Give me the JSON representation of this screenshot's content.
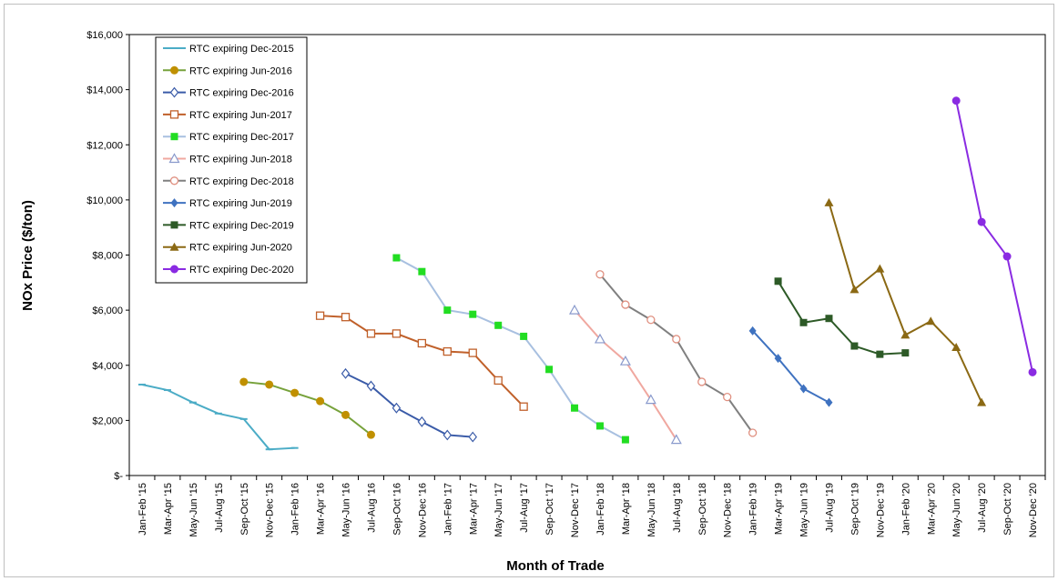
{
  "chart_data": {
    "type": "line",
    "title": "",
    "xlabel": "Month of Trade",
    "ylabel": "NOx Price ($/ton)",
    "ylim": [
      0,
      16000
    ],
    "yticks": [
      {
        "value": 0,
        "label": "$-"
      },
      {
        "value": 2000,
        "label": "$2,000"
      },
      {
        "value": 4000,
        "label": "$4,000"
      },
      {
        "value": 6000,
        "label": "$6,000"
      },
      {
        "value": 8000,
        "label": "$8,000"
      },
      {
        "value": 10000,
        "label": "$10,000"
      },
      {
        "value": 12000,
        "label": "$12,000"
      },
      {
        "value": 14000,
        "label": "$14,000"
      },
      {
        "value": 16000,
        "label": "$16,000"
      }
    ],
    "categories": [
      "Jan-Feb '15",
      "Mar-Apr '15",
      "May-Jun '15",
      "Jul-Aug '15",
      "Sep-Oct '15",
      "Nov-Dec '15",
      "Jan-Feb '16",
      "Mar-Apr '16",
      "May-Jun '16",
      "Jul-Aug '16",
      "Sep-Oct '16",
      "Nov-Dec '16",
      "Jan-Feb '17",
      "Mar-Apr '17",
      "May-Jun '17",
      "Jul-Aug '17",
      "Sep-Oct '17",
      "Nov-Dec '17",
      "Jan-Feb '18",
      "Mar-Apr '18",
      "May-Jun '18",
      "Jul-Aug '18",
      "Sep-Oct '18",
      "Nov-Dec '18",
      "Jan-Feb '19",
      "Mar-Apr '19",
      "May-Jun '19",
      "Jul-Aug '19",
      "Sep-Oct '19",
      "Nov-Dec '19",
      "Jan-Feb '20",
      "Mar-Apr '20",
      "May-Jun '20",
      "Jul-Aug '20",
      "Sep-Oct '20",
      "Nov-Dec '20"
    ],
    "grid": false,
    "legend_position": "top-left",
    "series": [
      {
        "name": "RTC expiring Dec-2015",
        "color": "#4bacc6",
        "marker": "dash",
        "points": [
          [
            0,
            3300
          ],
          [
            1,
            3100
          ],
          [
            2,
            2650
          ],
          [
            3,
            2250
          ],
          [
            4,
            2050
          ],
          [
            5,
            950
          ],
          [
            6,
            1000
          ]
        ]
      },
      {
        "name": "RTC expiring Jun-2016",
        "color": "#77a23b",
        "marker": "circle-filled",
        "marker_color": "#c09000",
        "points": [
          [
            4,
            3400
          ],
          [
            5,
            3300
          ],
          [
            6,
            3000
          ],
          [
            7,
            2700
          ],
          [
            8,
            2200
          ],
          [
            9,
            1480
          ]
        ]
      },
      {
        "name": "RTC expiring Dec-2016",
        "color": "#3a5ba8",
        "marker": "diamond-open",
        "points": [
          [
            8,
            3700
          ],
          [
            9,
            3250
          ],
          [
            10,
            2450
          ],
          [
            11,
            1950
          ],
          [
            12,
            1470
          ],
          [
            13,
            1400
          ]
        ]
      },
      {
        "name": "RTC expiring Jun-2017",
        "color": "#c0602a",
        "marker": "square-open",
        "points": [
          [
            7,
            5800
          ],
          [
            8,
            5750
          ],
          [
            9,
            5150
          ],
          [
            10,
            5150
          ],
          [
            11,
            4800
          ],
          [
            12,
            4500
          ],
          [
            13,
            4450
          ],
          [
            14,
            3450
          ],
          [
            15,
            2500
          ]
        ]
      },
      {
        "name": "RTC expiring Dec-2017",
        "color": "#a8c0e0",
        "marker": "square-filled",
        "marker_color": "#22dd22",
        "points": [
          [
            10,
            7900
          ],
          [
            11,
            7400
          ],
          [
            12,
            6000
          ],
          [
            13,
            5850
          ],
          [
            14,
            5450
          ],
          [
            15,
            5050
          ],
          [
            16,
            3850
          ],
          [
            17,
            2450
          ],
          [
            18,
            1800
          ],
          [
            19,
            1300
          ]
        ]
      },
      {
        "name": "RTC expiring Jun-2018",
        "color": "#f0a8a0",
        "marker": "triangle-open",
        "marker_color": "#8899cc",
        "points": [
          [
            17,
            6000
          ],
          [
            18,
            4950
          ],
          [
            19,
            4150
          ],
          [
            20,
            2750
          ],
          [
            21,
            1300
          ]
        ]
      },
      {
        "name": "RTC expiring Dec-2018",
        "color": "#808080",
        "marker": "circle-open",
        "marker_color": "#e09080",
        "points": [
          [
            18,
            7300
          ],
          [
            19,
            6200
          ],
          [
            20,
            5650
          ],
          [
            21,
            4950
          ],
          [
            22,
            3400
          ],
          [
            23,
            2850
          ],
          [
            24,
            1550
          ]
        ]
      },
      {
        "name": "RTC expiring Jun-2019",
        "color": "#3f72c0",
        "marker": "diamond-filled",
        "points": [
          [
            24,
            5250
          ],
          [
            25,
            4250
          ],
          [
            26,
            3150
          ],
          [
            27,
            2650
          ]
        ]
      },
      {
        "name": "RTC expiring Dec-2019",
        "color": "#2d5a27",
        "marker": "square-filled",
        "points": [
          [
            25,
            7050
          ],
          [
            26,
            5550
          ],
          [
            27,
            5700
          ],
          [
            28,
            4700
          ],
          [
            29,
            4400
          ],
          [
            30,
            4450
          ]
        ]
      },
      {
        "name": "RTC expiring Jun-2020",
        "color": "#8b6914",
        "marker": "triangle-filled",
        "points": [
          [
            27,
            9900
          ],
          [
            28,
            6750
          ],
          [
            29,
            7500
          ],
          [
            30,
            5100
          ],
          [
            31,
            5600
          ],
          [
            32,
            4650
          ],
          [
            33,
            2650
          ]
        ]
      },
      {
        "name": "RTC expiring Dec-2020",
        "color": "#8a2be2",
        "marker": "circle-filled",
        "points": [
          [
            32,
            13600
          ],
          [
            33,
            9200
          ],
          [
            34,
            7950
          ],
          [
            35,
            3750
          ]
        ]
      }
    ]
  }
}
